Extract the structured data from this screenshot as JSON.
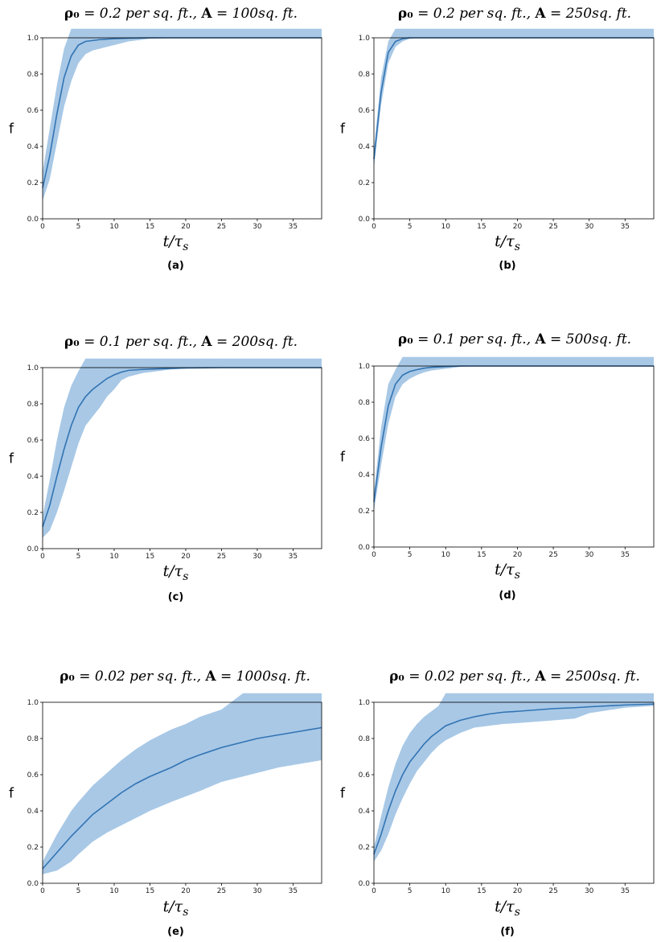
{
  "chart_data": [
    {
      "type": "line",
      "title_parts": [
        "ρ₀",
        " = 0.2 per sq. ft., ",
        "A",
        " = 100sq. ft."
      ],
      "caption": "(a)",
      "ylabel": "f",
      "xlabel": "t/τ",
      "xlabel_sub": "s",
      "xlim": [
        0,
        39
      ],
      "ylim": [
        0,
        1
      ],
      "xticks": [
        0,
        5,
        10,
        15,
        20,
        25,
        30,
        35
      ],
      "yticks": [
        0.0,
        0.2,
        0.4,
        0.6,
        0.8,
        1.0
      ],
      "ytick_labels": [
        "0.0",
        "0.2",
        "0.4",
        "0.6",
        "0.8",
        "1.0"
      ],
      "x": [
        0,
        1,
        2,
        3,
        4,
        5,
        6,
        7,
        8,
        10,
        12,
        15,
        20,
        25,
        30,
        35,
        39
      ],
      "mean": [
        0.17,
        0.35,
        0.58,
        0.78,
        0.9,
        0.96,
        0.98,
        0.985,
        0.99,
        0.995,
        0.998,
        1.0,
        1.0,
        1.0,
        1.0,
        1.0,
        1.0
      ],
      "lower": [
        0.1,
        0.22,
        0.42,
        0.62,
        0.76,
        0.86,
        0.91,
        0.93,
        0.94,
        0.96,
        0.98,
        0.995,
        1.0,
        1.0,
        1.0,
        1.0,
        1.0
      ],
      "upper": [
        0.26,
        0.5,
        0.74,
        0.94,
        1.0,
        1.0,
        1.0,
        1.0,
        1.0,
        1.0,
        1.0,
        1.0,
        1.0,
        1.0,
        1.0,
        1.0,
        1.0
      ]
    },
    {
      "type": "line",
      "title_parts": [
        "ρ₀",
        " = 0.2 per sq. ft., ",
        "A",
        " = 250sq. ft."
      ],
      "caption": "(b)",
      "ylabel": "f",
      "xlabel": "t/τ",
      "xlabel_sub": "s",
      "xlim": [
        0,
        39
      ],
      "ylim": [
        0,
        1
      ],
      "xticks": [
        0,
        5,
        10,
        15,
        20,
        25,
        30,
        35
      ],
      "yticks": [
        0.0,
        0.2,
        0.4,
        0.6,
        0.8,
        1.0
      ],
      "ytick_labels": [
        "0.0",
        "0.2",
        "0.4",
        "0.6",
        "0.8",
        "1.0"
      ],
      "x": [
        0,
        1,
        2,
        3,
        4,
        5,
        6,
        8,
        10,
        15,
        20,
        25,
        30,
        35,
        39
      ],
      "mean": [
        0.33,
        0.7,
        0.92,
        0.98,
        0.995,
        1.0,
        1.0,
        1.0,
        1.0,
        1.0,
        1.0,
        1.0,
        1.0,
        1.0,
        1.0
      ],
      "lower": [
        0.28,
        0.63,
        0.86,
        0.95,
        0.98,
        0.995,
        1.0,
        1.0,
        1.0,
        1.0,
        1.0,
        1.0,
        1.0,
        1.0,
        1.0
      ],
      "upper": [
        0.38,
        0.78,
        0.98,
        1.0,
        1.0,
        1.0,
        1.0,
        1.0,
        1.0,
        1.0,
        1.0,
        1.0,
        1.0,
        1.0,
        1.0
      ]
    },
    {
      "type": "line",
      "title_parts": [
        "ρ₀",
        " = 0.1 per sq. ft., ",
        "A",
        " = 200sq. ft."
      ],
      "caption": "(c)",
      "ylabel": "f",
      "xlabel": "t/τ",
      "xlabel_sub": "s",
      "xlim": [
        0,
        39
      ],
      "ylim": [
        0,
        1
      ],
      "xticks": [
        0,
        5,
        10,
        15,
        20,
        25,
        30,
        35
      ],
      "yticks": [
        0.0,
        0.2,
        0.4,
        0.6,
        0.8,
        1.0
      ],
      "ytick_labels": [
        "0.0",
        "0.2",
        "0.4",
        "0.6",
        "0.8",
        "1.0"
      ],
      "x": [
        0,
        1,
        2,
        3,
        4,
        5,
        6,
        7,
        8,
        9,
        10,
        11,
        12,
        14,
        16,
        18,
        20,
        25,
        30,
        35,
        39
      ],
      "mean": [
        0.12,
        0.24,
        0.4,
        0.55,
        0.68,
        0.78,
        0.84,
        0.88,
        0.91,
        0.94,
        0.96,
        0.975,
        0.985,
        0.99,
        0.993,
        0.996,
        0.998,
        1.0,
        1.0,
        1.0,
        1.0
      ],
      "lower": [
        0.06,
        0.1,
        0.2,
        0.32,
        0.45,
        0.58,
        0.68,
        0.73,
        0.78,
        0.84,
        0.88,
        0.93,
        0.95,
        0.97,
        0.98,
        0.99,
        0.995,
        1.0,
        1.0,
        1.0,
        1.0
      ],
      "upper": [
        0.18,
        0.38,
        0.6,
        0.78,
        0.9,
        0.98,
        1.0,
        1.0,
        1.0,
        1.0,
        1.0,
        1.0,
        1.0,
        1.0,
        1.0,
        1.0,
        1.0,
        1.0,
        1.0,
        1.0,
        1.0
      ]
    },
    {
      "type": "line",
      "title_parts": [
        "ρ₀",
        " = 0.1 per sq. ft., ",
        "A",
        " = 500sq. ft."
      ],
      "caption": "(d)",
      "ylabel": "f",
      "xlabel": "t/τ",
      "xlabel_sub": "s",
      "xlim": [
        0,
        39
      ],
      "ylim": [
        0,
        1
      ],
      "xticks": [
        0,
        5,
        10,
        15,
        20,
        25,
        30,
        35
      ],
      "yticks": [
        0.0,
        0.2,
        0.4,
        0.6,
        0.8,
        1.0
      ],
      "ytick_labels": [
        "0.0",
        "0.2",
        "0.4",
        "0.6",
        "0.8",
        "1.0"
      ],
      "x": [
        0,
        1,
        2,
        3,
        4,
        5,
        6,
        7,
        8,
        10,
        12,
        15,
        20,
        25,
        30,
        35,
        39
      ],
      "mean": [
        0.25,
        0.55,
        0.78,
        0.9,
        0.95,
        0.97,
        0.98,
        0.988,
        0.993,
        0.997,
        1.0,
        1.0,
        1.0,
        1.0,
        1.0,
        1.0,
        1.0
      ],
      "lower": [
        0.2,
        0.45,
        0.68,
        0.83,
        0.9,
        0.93,
        0.95,
        0.965,
        0.975,
        0.985,
        0.995,
        1.0,
        1.0,
        1.0,
        1.0,
        1.0,
        1.0
      ],
      "upper": [
        0.3,
        0.66,
        0.9,
        0.98,
        1.0,
        1.0,
        1.0,
        1.0,
        1.0,
        1.0,
        1.0,
        1.0,
        1.0,
        1.0,
        1.0,
        1.0,
        1.0
      ]
    },
    {
      "type": "line",
      "title_parts": [
        "ρ₀",
        " = 0.02 per sq. ft., ",
        "A",
        " = 1000sq. ft."
      ],
      "caption": "(e)",
      "ylabel": "f",
      "xlabel": "t/τ",
      "xlabel_sub": "s",
      "xlim": [
        0,
        39
      ],
      "ylim": [
        0,
        1
      ],
      "xticks": [
        0,
        5,
        10,
        15,
        20,
        25,
        30,
        35
      ],
      "yticks": [
        0.0,
        0.2,
        0.4,
        0.6,
        0.8,
        1.0
      ],
      "ytick_labels": [
        "0.0",
        "0.2",
        "0.4",
        "0.6",
        "0.8",
        "1.0"
      ],
      "x": [
        0,
        2,
        4,
        5,
        7,
        9,
        11,
        13,
        15,
        18,
        20,
        22,
        25,
        28,
        30,
        33,
        36,
        39
      ],
      "mean": [
        0.08,
        0.17,
        0.26,
        0.3,
        0.38,
        0.44,
        0.5,
        0.55,
        0.59,
        0.64,
        0.68,
        0.71,
        0.75,
        0.78,
        0.8,
        0.82,
        0.84,
        0.86
      ],
      "lower": [
        0.05,
        0.07,
        0.12,
        0.16,
        0.23,
        0.28,
        0.32,
        0.36,
        0.4,
        0.45,
        0.48,
        0.51,
        0.56,
        0.59,
        0.61,
        0.64,
        0.66,
        0.68
      ],
      "upper": [
        0.12,
        0.27,
        0.4,
        0.45,
        0.54,
        0.61,
        0.68,
        0.74,
        0.79,
        0.85,
        0.88,
        0.92,
        0.96,
        1.0,
        1.0,
        1.0,
        1.0,
        1.0
      ]
    },
    {
      "type": "line",
      "title_parts": [
        "ρ₀",
        " = 0.02 per sq. ft., ",
        "A",
        " = 2500sq. ft."
      ],
      "caption": "(f)",
      "ylabel": "f",
      "xlabel": "t/τ",
      "xlabel_sub": "s",
      "xlim": [
        0,
        39
      ],
      "ylim": [
        0,
        1
      ],
      "xticks": [
        0,
        5,
        10,
        15,
        20,
        25,
        30,
        35
      ],
      "yticks": [
        0.0,
        0.2,
        0.4,
        0.6,
        0.8,
        1.0
      ],
      "ytick_labels": [
        "0.0",
        "0.2",
        "0.4",
        "0.6",
        "0.8",
        "1.0"
      ],
      "x": [
        0,
        1,
        2,
        3,
        4,
        5,
        6,
        7,
        8,
        9,
        10,
        12,
        14,
        16,
        18,
        20,
        25,
        28,
        30,
        35,
        39
      ],
      "mean": [
        0.16,
        0.27,
        0.4,
        0.51,
        0.6,
        0.67,
        0.72,
        0.77,
        0.81,
        0.84,
        0.87,
        0.9,
        0.92,
        0.935,
        0.945,
        0.95,
        0.965,
        0.97,
        0.975,
        0.985,
        0.99
      ],
      "lower": [
        0.12,
        0.18,
        0.27,
        0.38,
        0.47,
        0.55,
        0.62,
        0.67,
        0.72,
        0.76,
        0.79,
        0.83,
        0.86,
        0.87,
        0.88,
        0.885,
        0.9,
        0.91,
        0.94,
        0.97,
        0.98
      ],
      "upper": [
        0.2,
        0.37,
        0.53,
        0.66,
        0.76,
        0.83,
        0.88,
        0.92,
        0.95,
        0.98,
        1.0,
        1.0,
        1.0,
        1.0,
        1.0,
        1.0,
        1.0,
        1.0,
        1.0,
        1.0,
        1.0
      ]
    }
  ],
  "colors": {
    "line": "#3274b3",
    "band": "#a8c8e6"
  }
}
